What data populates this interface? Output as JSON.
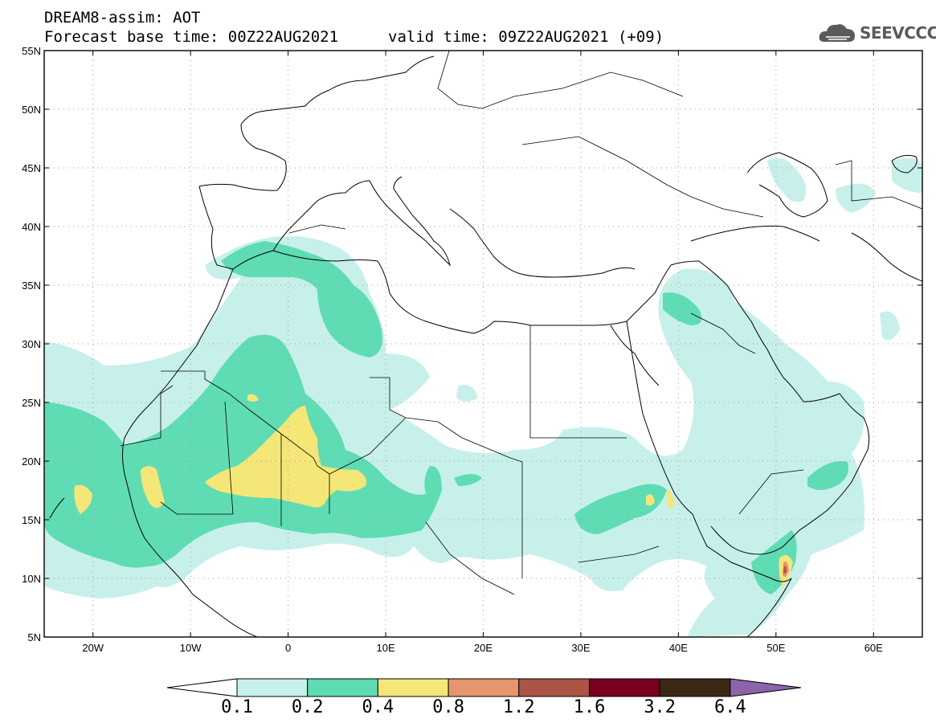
{
  "header": {
    "title": "DREAM8-assim: AOT",
    "base_time": "Forecast base time: 00Z22AUG2021",
    "valid_time": "valid time: 09Z22AUG2021 (+09)"
  },
  "brand": {
    "name": "SEEVCCC",
    "icon": "cloud-logo-icon"
  },
  "map": {
    "lon_range": [
      -25,
      65
    ],
    "lat_range": [
      5,
      55
    ],
    "lat_ticks": [
      "5N",
      "10N",
      "15N",
      "20N",
      "25N",
      "30N",
      "35N",
      "40N",
      "45N",
      "50N",
      "55N"
    ],
    "lon_ticks": [
      "20W",
      "10W",
      "0",
      "10E",
      "20E",
      "30E",
      "40E",
      "50E",
      "60E"
    ],
    "grid": "dotted"
  },
  "colorbar": {
    "labels": [
      "0.1",
      "0.2",
      "0.4",
      "0.8",
      "1.2",
      "1.6",
      "3.2",
      "6.4"
    ],
    "colors": [
      "#ffffff",
      "#c8f0eb",
      "#5fdcb4",
      "#f5e678",
      "#e6966e",
      "#aa5546",
      "#78001e",
      "#3c2814",
      "#8c64aa"
    ]
  },
  "colors": {
    "level1": "#c8f0eb",
    "level2": "#5fdcb4",
    "level3": "#f5e678",
    "level4": "#e6966e",
    "level5": "#aa5546"
  }
}
